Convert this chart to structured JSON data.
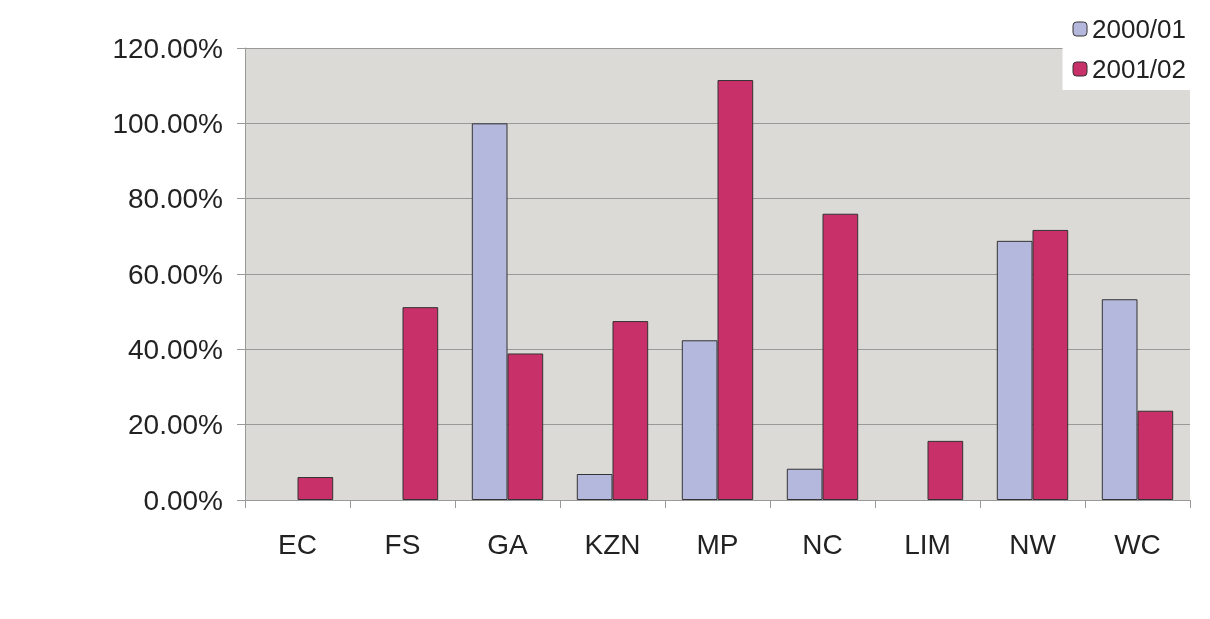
{
  "chart_data": {
    "type": "bar",
    "categories": [
      "EC",
      "FS",
      "GA",
      "KZN",
      "MP",
      "NC",
      "LIM",
      "NW",
      "WC"
    ],
    "series": [
      {
        "name": "2000/01",
        "color": "#b4b8dc",
        "values": [
          null,
          null,
          100,
          6.9,
          42.4,
          8.3,
          null,
          68.8,
          53.3
        ]
      },
      {
        "name": "2001/02",
        "color": "#c8306a",
        "values": [
          6.1,
          51.2,
          38.9,
          47.5,
          111.5,
          76,
          15.7,
          71.7,
          23.7
        ]
      }
    ],
    "ylim": [
      0,
      120
    ],
    "yticks": [
      {
        "value": 0,
        "label": "0.00%"
      },
      {
        "value": 20,
        "label": "20.00%"
      },
      {
        "value": 40,
        "label": "40.00%"
      },
      {
        "value": 60,
        "label": "60.00%"
      },
      {
        "value": 80,
        "label": "80.00%"
      },
      {
        "value": 100,
        "label": "100.00%"
      },
      {
        "value": 120,
        "label": "120.00%"
      }
    ],
    "grid": "y",
    "legend": "top right"
  }
}
